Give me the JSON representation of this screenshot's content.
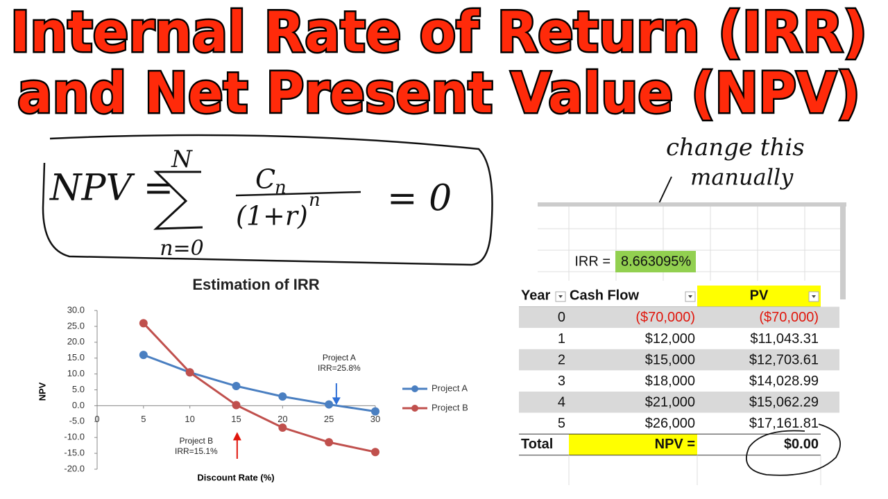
{
  "title": [
    "Internal Rate of Return (IRR)",
    "and Net Present Value (NPV)"
  ],
  "formula": {
    "lhs": "NPV =",
    "upper": "N",
    "lower": "n=0",
    "numerator": "C",
    "numerator_sub": "n",
    "denominator": "(1+r)",
    "exponent": "n",
    "rhs": "= 0"
  },
  "note": [
    "change this",
    "manually"
  ],
  "spreadsheet": {
    "irr_label": "IRR =",
    "irr_value": "8.663095%",
    "header": [
      "Year",
      "Cash Flow",
      "PV"
    ],
    "rows": [
      [
        "0",
        "($70,000)",
        "($70,000)"
      ],
      [
        "1",
        "$12,000",
        "$11,043.31"
      ],
      [
        "2",
        "$15,000",
        "$12,703.61"
      ],
      [
        "3",
        "$18,000",
        "$14,028.99"
      ],
      [
        "4",
        "$21,000",
        "$15,062.29"
      ],
      [
        "5",
        "$26,000",
        "$17,161.81"
      ]
    ],
    "total": [
      "Total",
      "NPV =",
      "$0.00"
    ]
  },
  "chart_data": {
    "type": "line",
    "title": "Estimation of IRR",
    "x_label": "Discount Rate (%)",
    "y_label": "NPV",
    "x": [
      5,
      10,
      15,
      20,
      25,
      30
    ],
    "series": [
      {
        "name": "Project A",
        "color": "#4a7fc1",
        "values": [
          16.0,
          10.5,
          6.2,
          2.9,
          0.4,
          -1.8
        ]
      },
      {
        "name": "Project B",
        "color": "#c0504d",
        "values": [
          26.0,
          10.5,
          0.2,
          -6.9,
          -11.5,
          -14.6
        ]
      }
    ],
    "xlim": [
      0,
      30
    ],
    "xticks": [
      0,
      5,
      10,
      15,
      20,
      25,
      30
    ],
    "ylim": [
      -20,
      30
    ],
    "yticks": [
      {
        "value": -20,
        "label": "-20.0"
      },
      {
        "value": -15,
        "label": "-15.0"
      },
      {
        "value": -10,
        "label": "-10.0"
      },
      {
        "value": -5,
        "label": "-5.0"
      },
      {
        "value": 0,
        "label": "0.0"
      },
      {
        "value": 5,
        "label": "5.0"
      },
      {
        "value": 10,
        "label": "10.0"
      },
      {
        "value": 15,
        "label": "15.0"
      },
      {
        "value": 20,
        "label": "20.0"
      },
      {
        "value": 25,
        "label": "25.0"
      },
      {
        "value": 30,
        "label": "30.0"
      }
    ],
    "legend": "right",
    "annotations": [
      {
        "x": 25.8,
        "text": [
          "Project A",
          "IRR=25.8%"
        ],
        "color": "#2e6fd6"
      },
      {
        "x": 15.1,
        "text": [
          "Project B",
          "IRR=15.1%"
        ],
        "color": "#e0160c"
      }
    ]
  }
}
